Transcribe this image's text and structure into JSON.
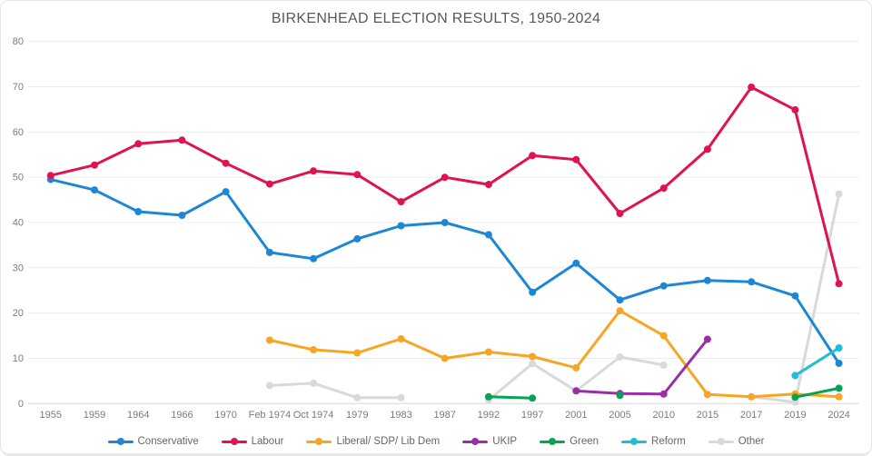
{
  "chart_data": {
    "type": "line",
    "title": "BIRKENHEAD ELECTION RESULTS, 1950-2024",
    "categories": [
      "1955",
      "1959",
      "1964",
      "1966",
      "1970",
      "Feb 1974",
      "Oct 1974",
      "1979",
      "1983",
      "1987",
      "1992",
      "1997",
      "2001",
      "2005",
      "2010",
      "2015",
      "2017",
      "2019",
      "2024"
    ],
    "series": [
      {
        "name": "Conservative",
        "color": "#1e87d4",
        "values": [
          49.5,
          47.2,
          42.4,
          41.6,
          46.8,
          33.4,
          32.0,
          36.4,
          39.3,
          40.0,
          37.3,
          24.6,
          31.0,
          22.9,
          26.0,
          27.2,
          26.9,
          23.8,
          8.9
        ]
      },
      {
        "name": "Labour",
        "color": "#e0144c",
        "values": [
          50.4,
          52.7,
          57.4,
          58.2,
          53.1,
          48.5,
          51.4,
          50.6,
          44.6,
          50.0,
          48.4,
          54.8,
          53.9,
          42.0,
          47.6,
          56.2,
          69.9,
          64.9,
          26.5
        ]
      },
      {
        "name": "Liberal/ SDP/ Lib Dem",
        "color": "#f6a623",
        "values": [
          null,
          null,
          null,
          null,
          null,
          14.0,
          11.9,
          11.2,
          14.3,
          10.0,
          11.4,
          10.4,
          7.9,
          20.5,
          15.0,
          2.0,
          1.5,
          2.1,
          1.5
        ]
      },
      {
        "name": "UKIP",
        "color": "#9b2da6",
        "values": [
          null,
          null,
          null,
          null,
          null,
          null,
          null,
          null,
          null,
          null,
          null,
          null,
          2.8,
          2.2,
          2.1,
          14.2,
          null,
          null,
          null
        ]
      },
      {
        "name": "Green",
        "color": "#07a355",
        "values": [
          null,
          null,
          null,
          null,
          null,
          null,
          null,
          null,
          null,
          null,
          1.5,
          1.2,
          null,
          1.8,
          null,
          null,
          null,
          1.4,
          3.4
        ]
      },
      {
        "name": "Reform",
        "color": "#22bcd4",
        "values": [
          null,
          null,
          null,
          null,
          null,
          null,
          null,
          null,
          null,
          null,
          null,
          null,
          null,
          null,
          null,
          null,
          null,
          6.2,
          12.3
        ]
      },
      {
        "name": "Other",
        "color": "#d9d9d9",
        "values": [
          null,
          null,
          null,
          null,
          null,
          4.0,
          4.5,
          1.3,
          1.3,
          null,
          0.8,
          8.8,
          2.8,
          10.3,
          8.5,
          null,
          1.5,
          0.3,
          46.3
        ]
      }
    ],
    "ylim": [
      0,
      80
    ],
    "yticks": [
      0,
      10,
      20,
      30,
      40,
      50,
      60,
      70,
      80
    ],
    "grid": true,
    "legend_position": "bottom",
    "axis_label_color": "#7b7b7b",
    "gridline_color": "#ececec",
    "baseline_color": "#d7d7d7"
  }
}
